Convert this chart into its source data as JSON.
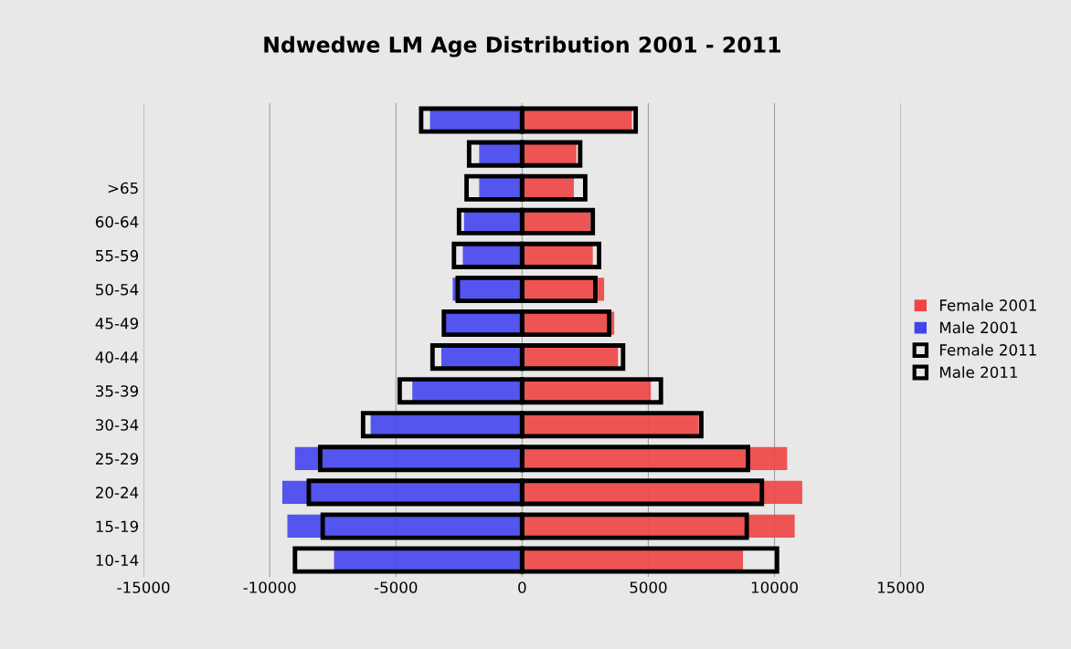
{
  "chart_data": {
    "type": "bar",
    "orientation": "horizontal",
    "title": "Ndwedwe LM Age Distribution 2001 - 2011",
    "categories": [
      null,
      null,
      ">65",
      "60-64",
      "55-59",
      "50-54",
      "45-49",
      "40-44",
      "35-39",
      "30-34",
      "25-29",
      "20-24",
      "15-19",
      "10-14"
    ],
    "series": [
      {
        "name": "Female 2001",
        "color": "#ee4444",
        "values": [
          4350,
          2150,
          2050,
          2700,
          2800,
          3250,
          3650,
          3800,
          5100,
          7000,
          10500,
          11100,
          10800,
          8750
        ]
      },
      {
        "name": "Male 2001",
        "color": "#4444ee",
        "values": [
          -3650,
          -1700,
          -1700,
          -2300,
          -2350,
          -2750,
          -3050,
          -3200,
          -4350,
          -6000,
          -9000,
          -9500,
          -9300,
          -7450
        ]
      },
      {
        "name": "Female 2011",
        "color": "#000000",
        "line_style": "solid",
        "values": [
          4500,
          2300,
          2500,
          2800,
          3050,
          2900,
          3450,
          4000,
          5500,
          7100,
          8950,
          9500,
          8900,
          10100
        ]
      },
      {
        "name": "Male 2011",
        "color": "#000000",
        "line_style": "solid",
        "values": [
          -4000,
          -2100,
          -2200,
          -2500,
          -2700,
          -2550,
          -3100,
          -3550,
          -4850,
          -6300,
          -8000,
          -8450,
          -7900,
          -9000
        ]
      }
    ],
    "xlim": [
      -15000,
      15000
    ],
    "xticks": [
      -15000,
      -10000,
      -5000,
      0,
      5000,
      10000,
      15000
    ],
    "grid": "x",
    "legend": "right"
  }
}
